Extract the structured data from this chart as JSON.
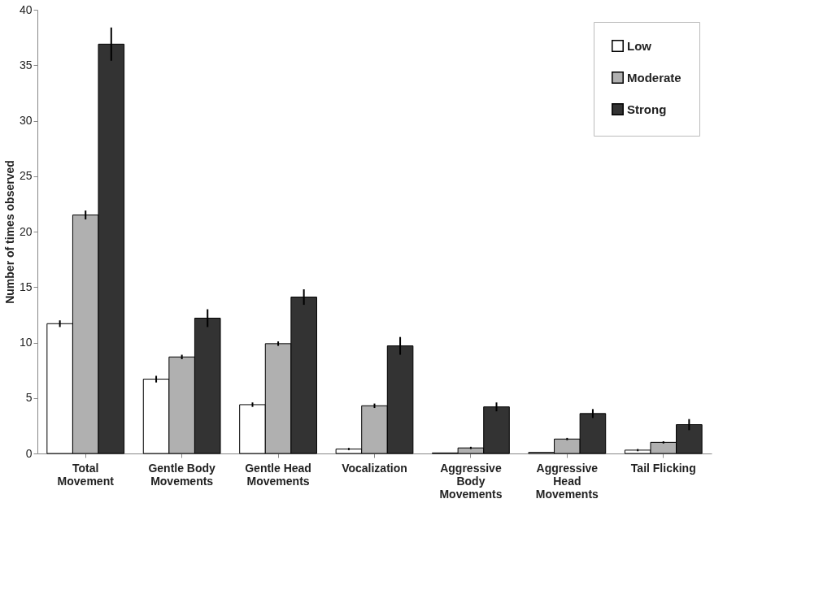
{
  "chart_data": {
    "type": "bar",
    "ylabel": "Number of times observed",
    "categories": [
      "Total Movement",
      "Gentle Body Movements",
      "Gentle Head Movements",
      "Vocalization",
      "Aggressive Body Movements",
      "Aggressive Head Movements",
      "Tail Flicking"
    ],
    "series": [
      {
        "name": "Low",
        "color": "#ffffff",
        "values": [
          11.7,
          6.7,
          4.4,
          0.4,
          0.05,
          0.1,
          0.3
        ],
        "errors": [
          0.3,
          0.3,
          0.2,
          0.1,
          null,
          null,
          0.1
        ]
      },
      {
        "name": "Moderate",
        "color": "#b0b0b0",
        "values": [
          21.5,
          8.7,
          9.9,
          4.3,
          0.5,
          1.3,
          1.0
        ],
        "errors": [
          0.4,
          0.2,
          0.2,
          0.2,
          0.1,
          0.1,
          0.1
        ]
      },
      {
        "name": "Strong",
        "color": "#333333",
        "values": [
          36.9,
          12.2,
          14.1,
          9.7,
          4.2,
          3.6,
          2.6
        ],
        "errors": [
          1.5,
          0.8,
          0.7,
          0.8,
          0.4,
          0.4,
          0.5
        ]
      }
    ],
    "ylim": [
      0,
      40
    ],
    "yticks": [
      0,
      5,
      10,
      15,
      20,
      25,
      30,
      35,
      40
    ],
    "grid": false,
    "legend": "top right"
  }
}
